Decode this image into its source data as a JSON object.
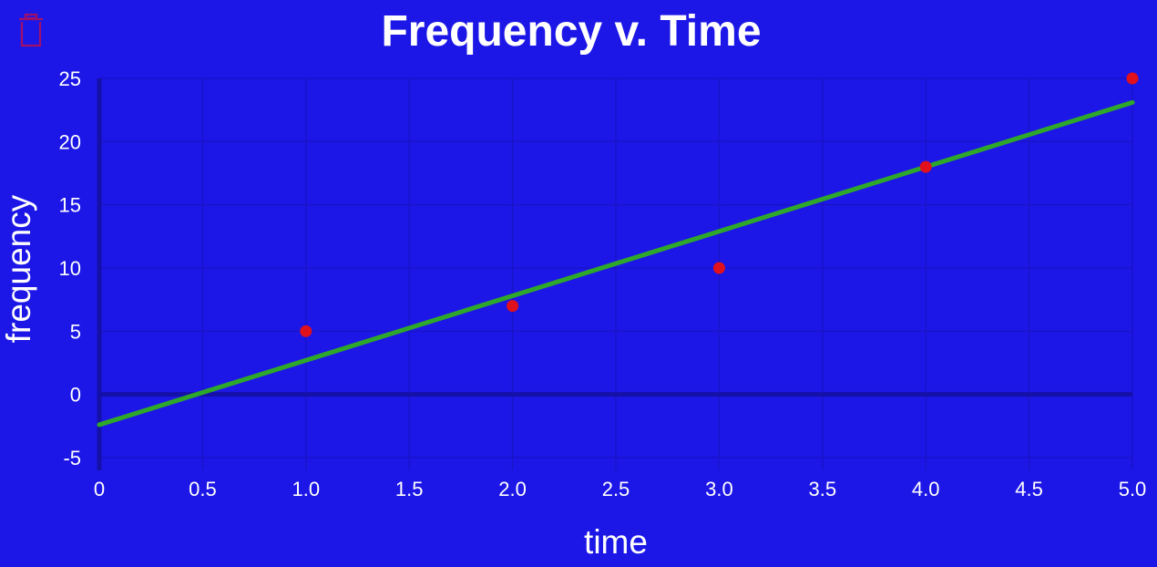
{
  "theme": {
    "background": "#1c17e6",
    "grid_color": "#1a14c8",
    "zero_line_color": "#1410a8",
    "text_color": "#ffffff",
    "point_color": "#e0101c",
    "line_color": "#2ea82a",
    "trash_icon_color": "#a0106a"
  },
  "toolbar": {
    "delete_icon": "trash-icon"
  },
  "chart_data": {
    "type": "scatter",
    "title": "Frequency v. Time",
    "xlabel": "time",
    "ylabel": "frequency",
    "xlim": [
      0,
      5
    ],
    "ylim": [
      -5,
      25
    ],
    "x_ticks": [
      0,
      0.5,
      1.0,
      1.5,
      2.0,
      2.5,
      3.0,
      3.5,
      4.0,
      4.5,
      5.0
    ],
    "x_tick_labels": [
      "0",
      "0.5",
      "1.0",
      "1.5",
      "2.0",
      "2.5",
      "3.0",
      "3.5",
      "4.0",
      "4.5",
      "5.0"
    ],
    "y_ticks": [
      -5,
      0,
      5,
      10,
      15,
      20,
      25
    ],
    "y_tick_labels": [
      "-5",
      "0",
      "5",
      "10",
      "15",
      "20",
      "25"
    ],
    "grid": true,
    "points": [
      {
        "x": 1,
        "y": 5
      },
      {
        "x": 2,
        "y": 7
      },
      {
        "x": 3,
        "y": 10
      },
      {
        "x": 4,
        "y": 18
      },
      {
        "x": 5,
        "y": 25
      }
    ],
    "fit_line": {
      "x": [
        0,
        5
      ],
      "y": [
        -2.4,
        23.1
      ]
    }
  }
}
